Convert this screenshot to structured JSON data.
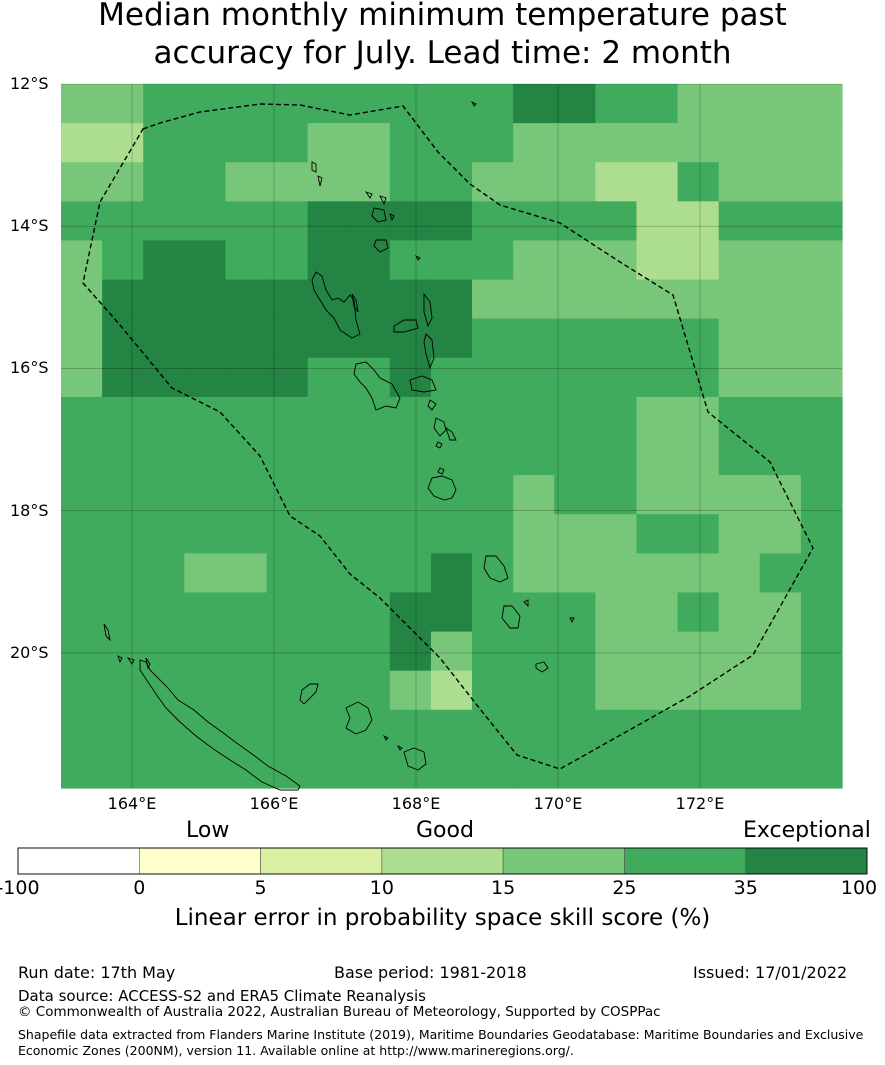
{
  "title": {
    "line1": "Median monthly minimum temperature past",
    "line2": "accuracy for July. Lead time: 2 month"
  },
  "map": {
    "lon_range": [
      163,
      174
    ],
    "lat_range": [
      -21.9,
      -12.0
    ],
    "lat_ticks": [
      {
        "value": -12,
        "label": "12°S"
      },
      {
        "value": -14,
        "label": "14°S"
      },
      {
        "value": -16,
        "label": "16°S"
      },
      {
        "value": -18,
        "label": "18°S"
      },
      {
        "value": -20,
        "label": "20°S"
      }
    ],
    "lon_ticks": [
      {
        "value": 164,
        "label": "164°E"
      },
      {
        "value": 166,
        "label": "166°E"
      },
      {
        "value": 168,
        "label": "168°E"
      },
      {
        "value": 170,
        "label": "170°E"
      },
      {
        "value": 172,
        "label": "172°E"
      }
    ],
    "grid_lines": true,
    "skill_grid_classes": [
      "4455555555566554444",
      "3355554455544444444",
      "4455444455444335444",
      "5555556666555533555",
      "4566556655544433444",
      "4666666666444444444",
      "4666666666555555444",
      "4666665565555555444",
      "5555555555555544555",
      "5555555555555544555",
      "5555555555545544445",
      "5555555555544455445",
      "5554455556544444455",
      "5555555566555445445",
      "5555555564555444445",
      "5555555543555444445",
      "5555555555555555555",
      "5555555555555555555"
    ]
  },
  "colorbar": {
    "top_labels": [
      "Low",
      "Good",
      "Exceptional"
    ],
    "ticks": [
      "-100",
      "0",
      "5",
      "10",
      "15",
      "25",
      "35",
      "100"
    ],
    "colors": [
      "#ffffff",
      "#ffffcc",
      "#d9f0a3",
      "#addd8e",
      "#78c679",
      "#41ab5d",
      "#238443"
    ],
    "label": "Linear error in probability space skill score (%)"
  },
  "footer": {
    "run_date": "Run date: 17th May",
    "base_period": "Base period: 1981-2018",
    "issued": "Issued: 17/01/2022",
    "data_source": "Data source: ACCESS-S2 and ERA5 Climate Reanalysis",
    "copyright": "© Commonwealth of Australia 2022, Australian Bureau of Meteorology, Supported by COSPPac",
    "shapefile_line1": "Shapefile data extracted from Flanders Marine Institute (2019), Maritime Boundaries Geodatabase: Maritime Boundaries and Exclusive",
    "shapefile_line2": "Economic Zones (200NM), version 11. Available online at http://www.marineregions.org/."
  }
}
